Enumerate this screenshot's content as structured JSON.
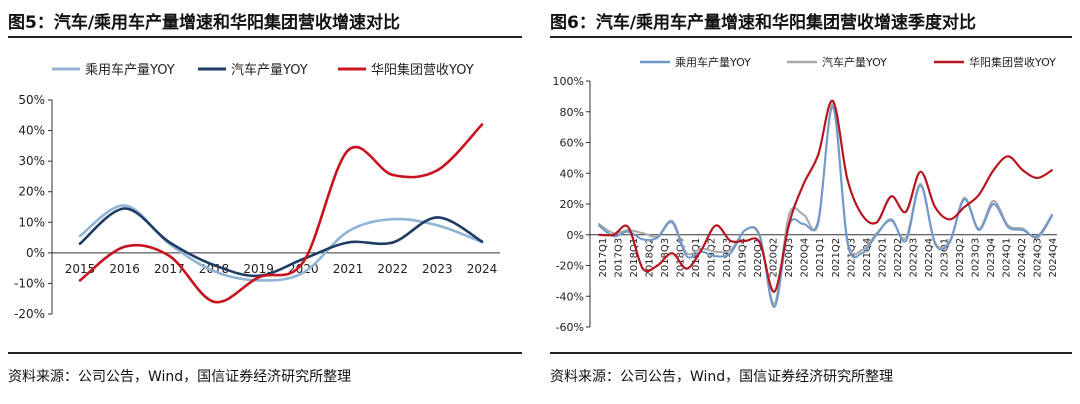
{
  "colors": {
    "passenger": "#8fb4d6",
    "auto": "#1f3b63",
    "huayang": "#c8141e",
    "p6_passenger": "#6f98cc",
    "p6_auto": "#a9a9a9",
    "p6_huayang": "#b7151f"
  },
  "panels": [
    {
      "title": "图5：汽车/乘用车产量增速和华阳集团营收增速对比",
      "source": "资料来源：公司公告，Wind，国信证券经济研究所整理"
    },
    {
      "title": "图6：汽车/乘用车产量增速和华阳集团营收增速季度对比",
      "source": "资料来源：公司公告，Wind，国信证券经济研究所整理"
    }
  ],
  "chart_data": [
    {
      "type": "line",
      "x": [
        "2015",
        "2016",
        "2017",
        "2018",
        "2019",
        "2020",
        "2021",
        "2022",
        "2023",
        "2024"
      ],
      "ylim": [
        -20,
        50
      ],
      "yticks": [
        "50%",
        "40%",
        "30%",
        "20%",
        "10%",
        "0%",
        "-10%",
        "-20%"
      ],
      "ytick_values": [
        50,
        40,
        30,
        20,
        10,
        0,
        -10,
        -20
      ],
      "legend_position": "top",
      "series": [
        {
          "name": "乘用车产量YOY",
          "color_key": "passenger",
          "values": [
            5.5,
            15.5,
            3,
            -6,
            -9,
            -6.5,
            7,
            11,
            9,
            3.5
          ]
        },
        {
          "name": "汽车产量YOY",
          "color_key": "auto",
          "values": [
            3,
            14.5,
            3.5,
            -4,
            -7.5,
            -2,
            3.4,
            3.4,
            11.6,
            3.7
          ]
        },
        {
          "name": "华阳集团营收YOY",
          "color_key": "huayang",
          "values": [
            -9,
            2,
            -1,
            -16,
            -8,
            -3,
            33.5,
            25.5,
            27,
            42
          ]
        }
      ]
    },
    {
      "type": "line",
      "x": [
        "2017Q1",
        "2017Q2",
        "2017Q3",
        "2017Q4",
        "2018Q1",
        "2018Q2",
        "2018Q3",
        "2018Q4",
        "2019Q1",
        "2019Q2",
        "2019Q3",
        "2019Q4",
        "2020Q1",
        "2020Q2",
        "2020Q3",
        "2020Q4",
        "2021Q1",
        "2021Q2",
        "2021Q3",
        "2021Q4",
        "2022Q1",
        "2022Q2",
        "2022Q3",
        "2022Q4",
        "2023Q1",
        "2023Q2",
        "2023Q3",
        "2023Q4",
        "2024Q1",
        "2024Q2",
        "2024Q3",
        "2024Q4"
      ],
      "x_tick_labels": [
        "2017Q1",
        "2017Q3",
        "2018Q1",
        "2018Q2",
        "2018Q3",
        "2018Q4",
        "2019Q1",
        "2019Q2",
        "2019Q3",
        "2019Q4",
        "2020Q1",
        "2020Q2",
        "2020Q3",
        "2020Q4",
        "2021Q1",
        "2021Q2",
        "2021Q3",
        "2021Q4",
        "2022Q1",
        "2022Q2",
        "2022Q3",
        "2022Q4",
        "2023Q1",
        "2023Q2",
        "2023Q3",
        "2023Q4",
        "2024Q1",
        "2024Q2",
        "2024Q3",
        "2024Q4"
      ],
      "ylim": [
        -60,
        100
      ],
      "yticks": [
        "100%",
        "80%",
        "60%",
        "40%",
        "20%",
        "0%",
        "-20%",
        "-40%",
        "-60%"
      ],
      "ytick_values": [
        100,
        80,
        60,
        40,
        20,
        0,
        -20,
        -40,
        -60
      ],
      "legend_position": "top",
      "series": [
        {
          "name": "乘用车产量YOY",
          "color_key": "p6_passenger",
          "values": [
            6,
            -1,
            2,
            -3,
            -2,
            8,
            -14,
            -11,
            -14,
            -12,
            3,
            -1,
            -47,
            6,
            7,
            9,
            83,
            -5,
            -12,
            0,
            10,
            -4,
            32,
            -6,
            -5,
            23,
            3,
            20,
            5,
            3,
            -1,
            13
          ]
        },
        {
          "name": "汽车产量YOY",
          "color_key": "p6_auto",
          "values": [
            7,
            1,
            3,
            1,
            -1,
            9,
            -12,
            -9,
            -11,
            -10,
            3,
            0,
            -45,
            13,
            13,
            7,
            85,
            -3,
            -10,
            1,
            9,
            -2,
            33,
            -5,
            -4,
            24,
            4,
            22,
            6,
            4,
            -2,
            12
          ]
        },
        {
          "name": "华阳集团营收YOY",
          "color_key": "p6_huayang",
          "values": [
            0,
            0,
            5,
            -22,
            -20,
            -12,
            -22,
            -10,
            6,
            -4,
            -4,
            -5,
            -37,
            7,
            33,
            52,
            87,
            36,
            13,
            8,
            25,
            15,
            41,
            18,
            10,
            18,
            26,
            42,
            51,
            42,
            37,
            42
          ]
        }
      ]
    }
  ]
}
